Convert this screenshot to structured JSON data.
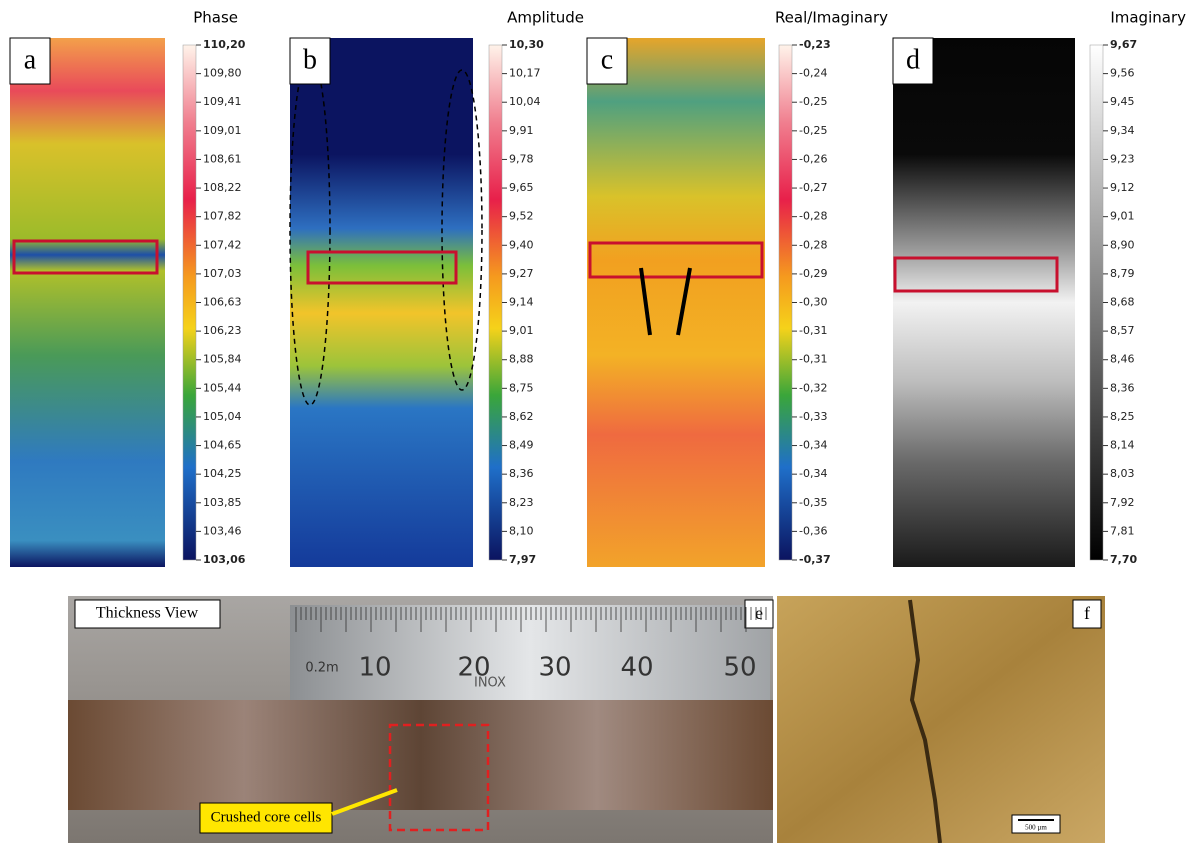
{
  "panels": [
    {
      "label": "a",
      "title": "Phase",
      "ticks": [
        "110,20",
        "109,80",
        "109,41",
        "109,01",
        "108,61",
        "108,22",
        "107,82",
        "107,42",
        "107,03",
        "106,63",
        "106,23",
        "105,84",
        "105,44",
        "105,04",
        "104,65",
        "104,25",
        "103,85",
        "103,46",
        "103,06"
      ]
    },
    {
      "label": "b",
      "title": "Amplitude",
      "ticks": [
        "10,30",
        "10,17",
        "10,04",
        "9,91",
        "9,78",
        "9,65",
        "9,52",
        "9,40",
        "9,27",
        "9,14",
        "9,01",
        "8,88",
        "8,75",
        "8,62",
        "8,49",
        "8,36",
        "8,23",
        "8,10",
        "7,97"
      ]
    },
    {
      "label": "c",
      "title": "Real/Imaginary",
      "ticks": [
        "-0,23",
        "-0,24",
        "-0,25",
        "-0,25",
        "-0,26",
        "-0,27",
        "-0,28",
        "-0,28",
        "-0,29",
        "-0,30",
        "-0,31",
        "-0,31",
        "-0,32",
        "-0,33",
        "-0,34",
        "-0,34",
        "-0,35",
        "-0,36",
        "-0,37"
      ]
    },
    {
      "label": "d",
      "title": "Imaginary",
      "ticks": [
        "9,67",
        "9,56",
        "9,45",
        "9,34",
        "9,23",
        "9,12",
        "9,01",
        "8,90",
        "8,79",
        "8,68",
        "8,57",
        "8,46",
        "8,36",
        "8,25",
        "8,14",
        "8,03",
        "7,92",
        "7,81",
        "7,70"
      ]
    }
  ],
  "photo_e": {
    "label": "e",
    "caption": "Thickness View",
    "annotation": "Crushed core cells",
    "ruler_marks": [
      "0.2m",
      "10",
      "20",
      "30",
      "40",
      "50"
    ],
    "ruler_brand": "INOX"
  },
  "photo_f": {
    "label": "f",
    "scale_bar": "500 µm"
  }
}
